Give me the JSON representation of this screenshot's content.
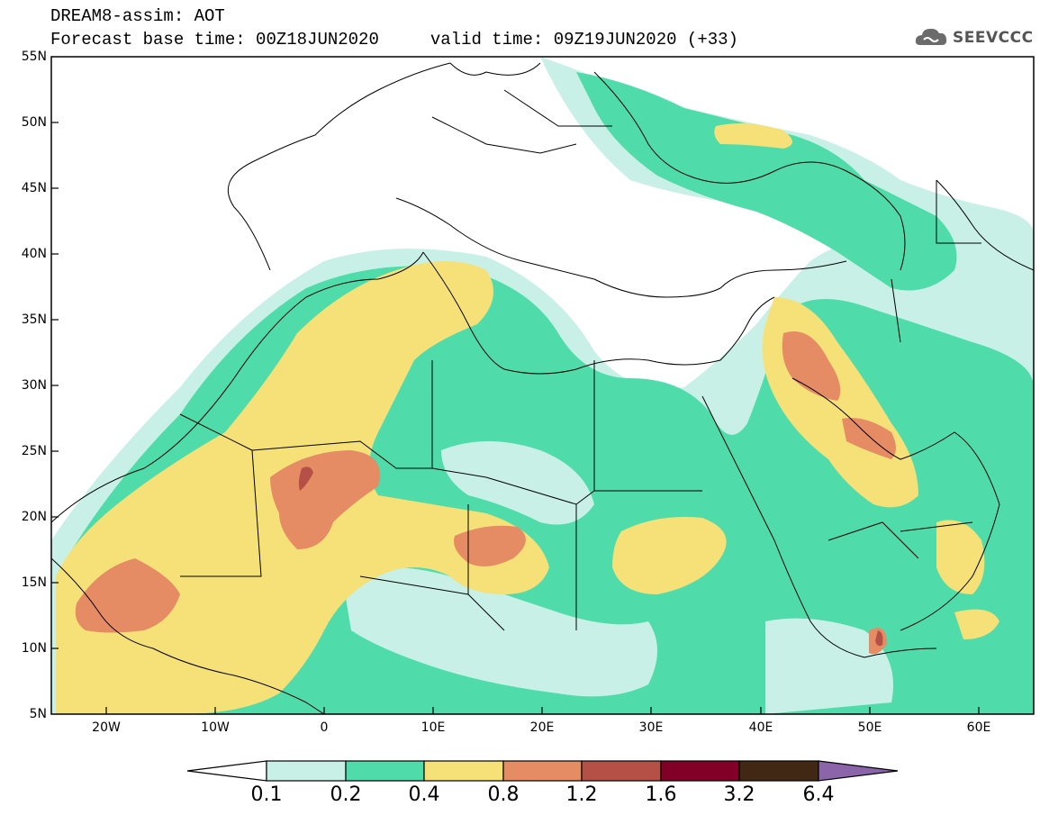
{
  "title": {
    "line1": "DREAM8-assim: AOT",
    "line2": "Forecast base time: 00Z18JUN2020     valid time: 09Z19JUN2020 (+33)"
  },
  "logo": {
    "text": "SEEVCCC",
    "icon": "cloud-icon"
  },
  "map": {
    "variable": "Aerosol Optical Thickness",
    "projection": "lat-lon",
    "lon_range": [
      -25,
      65
    ],
    "lat_range": [
      5,
      55
    ],
    "lat_labels": [
      "55N",
      "50N",
      "45N",
      "40N",
      "35N",
      "30N",
      "25N",
      "20N",
      "15N",
      "10N",
      "5N"
    ],
    "lon_labels": [
      "20W",
      "10W",
      "0",
      "10E",
      "20E",
      "30E",
      "40E",
      "50E",
      "60E"
    ]
  },
  "colorbar": {
    "levels": [
      "0.1",
      "0.2",
      "0.4",
      "0.8",
      "1.2",
      "1.6",
      "3.2",
      "6.4"
    ],
    "colors": [
      "#ffffff",
      "#c8f0e6",
      "#50dcaa",
      "#f5e178",
      "#e68c64",
      "#b45046",
      "#820028",
      "#412814",
      "#8c64aa"
    ]
  }
}
